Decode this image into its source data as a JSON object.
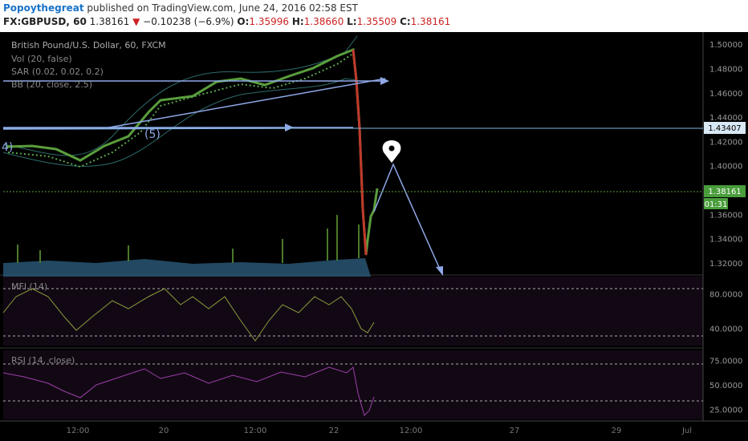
{
  "header": {
    "author": "Popoythegreat",
    "published_text": "published on TradingView.com, June 24, 2016 02:58 EST",
    "symbol": "FX:GBPUSD, 60",
    "last": "1.38161",
    "change": "−0.10238 (−6.9%)",
    "open_label": "O:",
    "open": "1.35996",
    "high_label": "H:",
    "high": "1.38660",
    "low_label": "L:",
    "low": "1.35509",
    "close_label": "C:",
    "close": "1.38161"
  },
  "indicators": {
    "title": "British Pound/U.S. Dollar, 60, FXCM",
    "vol": "Vol (20, false)",
    "sar": "SAR (0.02, 0.02, 0.2)",
    "bb": "BB (20, close, 2.5)",
    "mfi": "MFI (14)",
    "rsi": "RSI (14, close)"
  },
  "annotations": {
    "wave4": "4)",
    "wave5": "(5)"
  },
  "price_axis": {
    "ticks": [
      "1.50000",
      "1.48000",
      "1.46000",
      "1.44000",
      "1.42000",
      "1.40000",
      "1.38000",
      "1.36000",
      "1.34000",
      "1.32000"
    ],
    "tick_values": [
      1.5,
      1.48,
      1.46,
      1.44,
      1.42,
      1.4,
      1.38,
      1.36,
      1.34,
      1.32
    ],
    "level_label": "1.43407",
    "level_value": 1.43407,
    "last_label": "1.38161",
    "last_value": 1.38161,
    "countdown": "01:31",
    "range": [
      1.31,
      1.51
    ]
  },
  "mfi_axis": {
    "ticks": [
      "80.0000",
      "40.0000"
    ],
    "tick_values": [
      80,
      40
    ],
    "range": [
      20,
      100
    ]
  },
  "rsi_axis": {
    "ticks": [
      "75.0000",
      "50.0000",
      "25.0000"
    ],
    "tick_values": [
      75,
      50,
      25
    ],
    "range": [
      15,
      85
    ]
  },
  "time_axis": {
    "labels": [
      "12:00",
      "20",
      "12:00",
      "22",
      "12:00",
      "27",
      "29",
      "Jul",
      "12:00"
    ]
  },
  "colors": {
    "background": "#000000",
    "bb_band": "#2e6b6b",
    "sar": "#5aa64a",
    "up_candle": "#5a9e3c",
    "down_candle": "#c0392b",
    "trendline": "#8fa8e8",
    "mfi_line": "#8a9a3a",
    "rsi_line": "#9b3fa8",
    "volume": "#2a5a7a"
  },
  "chart_data": {
    "type": "candlestick",
    "symbol": "FX:GBPUSD",
    "interval": "60",
    "x_range": [
      "June 19, 2016",
      "July 1, 2016"
    ],
    "price_points": [
      {
        "date": "June 19, 2016",
        "price": 1.424
      },
      {
        "date": "June 20, 2016",
        "price": 1.465
      },
      {
        "date": "June 21, 2016",
        "price": 1.475
      },
      {
        "date": "June 22, 2016",
        "price": 1.478
      },
      {
        "date": "June 23, 2016",
        "price": 1.495
      },
      {
        "date": "June 24, 2016",
        "price": 1.325
      },
      {
        "date": "June 24, 2016",
        "price": 1.38161
      }
    ],
    "horizontal_level": 1.43407,
    "last_price": 1.38161,
    "projection": [
      {
        "date": "June 24, 2016",
        "price": 1.381
      },
      {
        "date": "June 25, 2016",
        "price": 1.405
      },
      {
        "date": "June 27, 2016",
        "price": 1.313
      }
    ],
    "mfi_levels": [
      80,
      40
    ],
    "rsi_levels": [
      70,
      30
    ]
  }
}
